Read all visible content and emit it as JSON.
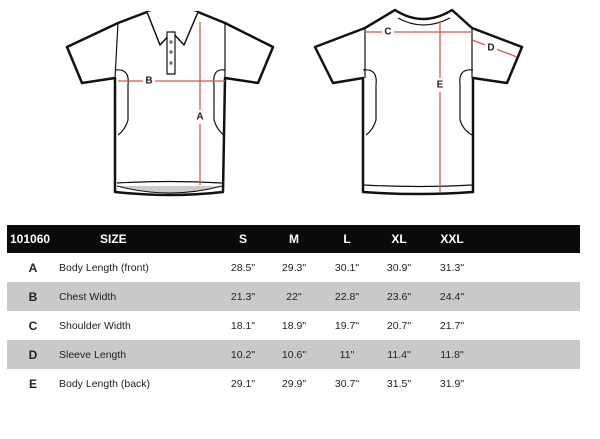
{
  "diagram": {
    "front_labels": [
      "A",
      "B"
    ],
    "back_labels": [
      "C",
      "D",
      "E"
    ],
    "measure_color": "#d9534f",
    "outline_color": "#111111"
  },
  "table": {
    "code": "101060",
    "size_label": "SIZE",
    "sizes": [
      "S",
      "M",
      "L",
      "XL",
      "XXL"
    ],
    "rows": [
      {
        "key": "A",
        "label": "Body Length (front)",
        "values": [
          "28.5\"",
          "29.3\"",
          "30.1\"",
          "30.9\"",
          "31.3\""
        ]
      },
      {
        "key": "B",
        "label": "Chest Width",
        "values": [
          "21.3\"",
          "22\"",
          "22.8\"",
          "23.6\"",
          "24.4\""
        ]
      },
      {
        "key": "C",
        "label": "Shoulder Width",
        "values": [
          "18.1\"",
          "18.9\"",
          "19.7\"",
          "20.7\"",
          "21.7\""
        ]
      },
      {
        "key": "D",
        "label": "Sleeve Length",
        "values": [
          "10.2\"",
          "10.6\"",
          "11\"",
          "11.4\"",
          "11.8\""
        ]
      },
      {
        "key": "E",
        "label": "Body Length (back)",
        "values": [
          "29.1\"",
          "29.9\"",
          "30.7\"",
          "31.5\"",
          "31.9\""
        ]
      }
    ]
  }
}
